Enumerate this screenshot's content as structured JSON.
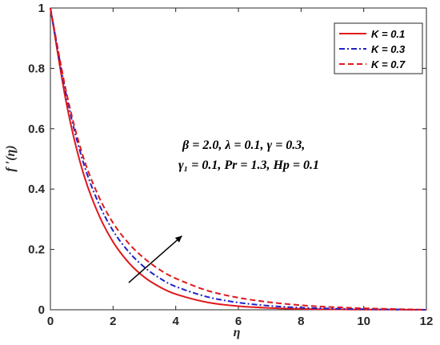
{
  "chart_data": {
    "type": "line",
    "xlabel": "η",
    "ylabel": "f ′(η)",
    "xlim": [
      0,
      12
    ],
    "ylim": [
      0,
      1
    ],
    "xticks": [
      "0",
      "2",
      "4",
      "6",
      "8",
      "10",
      "12"
    ],
    "yticks": [
      "0",
      "0.2",
      "0.4",
      "0.6",
      "0.8",
      "1"
    ],
    "grid": false,
    "legend_position": "top-right",
    "x": [
      0,
      0.5,
      1,
      1.5,
      2,
      2.5,
      3,
      3.5,
      4,
      5,
      6,
      7,
      8,
      9,
      10,
      11,
      12
    ],
    "series": [
      {
        "name": "K = 0.1",
        "color": "#e0181c",
        "style": "solid",
        "values": [
          1.0,
          0.69,
          0.47,
          0.325,
          0.225,
          0.156,
          0.108,
          0.075,
          0.052,
          0.025,
          0.012,
          0.006,
          0.003,
          0.0015,
          0.0008,
          0.0004,
          0.0
        ]
      },
      {
        "name": "K = 0.3",
        "color": "#1f22c8",
        "style": "dashdot",
        "values": [
          1.0,
          0.715,
          0.505,
          0.362,
          0.262,
          0.192,
          0.141,
          0.104,
          0.077,
          0.043,
          0.024,
          0.013,
          0.007,
          0.004,
          0.002,
          0.001,
          0.0
        ]
      },
      {
        "name": "K = 0.7",
        "color": "#e0181c",
        "style": "dashed",
        "values": [
          1.0,
          0.725,
          0.522,
          0.385,
          0.288,
          0.22,
          0.17,
          0.132,
          0.104,
          0.064,
          0.04,
          0.025,
          0.015,
          0.009,
          0.005,
          0.0025,
          0.0
        ]
      }
    ],
    "annotations": [
      "β = 2.0, λ = 0.1, γ = 0.3,",
      "γ₁ = 0.1, Pr = 1.3, Hp = 0.1"
    ],
    "arrow": {
      "from": [
        2.5,
        0.09
      ],
      "to": [
        4.2,
        0.245
      ],
      "color": "#000000"
    }
  }
}
